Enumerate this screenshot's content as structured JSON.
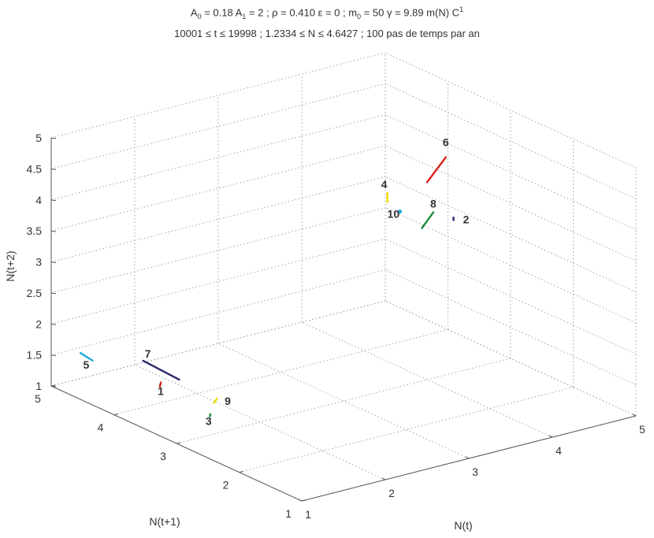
{
  "title_line1": {
    "p1": "A",
    "s1": "0",
    "p2": " = 0.18 A",
    "s2": "1",
    "p3": " = 2 ; ρ = 0.410 ε = 0 ; m",
    "s3": "0",
    "p4": " = 50 γ = 9.89 m(N) C",
    "sup": "1"
  },
  "title_line2": "10001 ≤ t ≤ 19998 ; 1.2334 ≤ N ≤ 4.6427 ; 100 pas de temps par an",
  "chart_data": {
    "type": "scatter3d",
    "title": "A0 = 0.18 A1 = 2 ; ρ = 0.410 ε = 0 ; m0 = 50 γ = 9.89 m(N) C1",
    "subtitle": "10001 ≤ t ≤ 19998 ; 1.2334 ≤ N ≤ 4.6427 ; 100 pas de temps par an",
    "xlabel": "N(t)",
    "ylabel": "N(t+1)",
    "zlabel": "N(t+2)",
    "xlim": [
      1,
      5
    ],
    "ylim": [
      1,
      5
    ],
    "zlim": [
      1,
      5
    ],
    "x_ticks": [
      "1",
      "2",
      "3",
      "4",
      "5"
    ],
    "y_ticks": [
      "1",
      "2",
      "3",
      "4",
      "5"
    ],
    "z_ticks": [
      "1",
      "1.5",
      "2",
      "2.5",
      "3",
      "3.5",
      "4",
      "4.5",
      "5"
    ],
    "grid": true,
    "segments": [
      {
        "name": "1",
        "color": "#cc2222",
        "x": [
          1.25,
          1.3
        ],
        "y": [
          3.6,
          3.65
        ],
        "z": [
          1.55,
          1.58
        ]
      },
      {
        "name": "2",
        "color": "#22226a",
        "x": [
          4.28,
          4.3
        ],
        "y": [
          2.95,
          2.98
        ],
        "z": [
          3.5,
          3.52
        ]
      },
      {
        "name": "3",
        "color": "#1a8a3a",
        "x": [
          1.4,
          1.42
        ],
        "y": [
          3.0,
          3.02
        ],
        "z": [
          1.3,
          1.32
        ]
      },
      {
        "name": "4",
        "color": "#eedd00",
        "x": [
          3.6,
          3.6
        ],
        "y": [
          3.1,
          3.1
        ],
        "z": [
          3.95,
          4.1
        ]
      },
      {
        "name": "5",
        "color": "#1ea8dc",
        "x": [
          1.05,
          1.12
        ],
        "y": [
          4.6,
          4.5
        ],
        "z": [
          1.7,
          1.6
        ]
      },
      {
        "name": "6",
        "color": "#dd2222",
        "x": [
          4.6,
          4.45
        ],
        "y": [
          3.5,
          3.6
        ],
        "z": [
          4.15,
          3.75
        ]
      },
      {
        "name": "7",
        "color": "#2a2a6a",
        "x": [
          1.35,
          1.52
        ],
        "y": [
          4.0,
          3.65
        ],
        "z": [
          1.75,
          1.55
        ]
      },
      {
        "name": "8",
        "color": "#1a8a3a",
        "x": [
          3.9,
          4.15
        ],
        "y": [
          2.95,
          3.1
        ],
        "z": [
          3.5,
          3.6
        ]
      },
      {
        "name": "9",
        "color": "#eedd00",
        "x": [
          1.45,
          1.52
        ],
        "y": [
          3.0,
          3.05
        ],
        "z": [
          1.5,
          1.52
        ]
      },
      {
        "name": "10",
        "color": "#1ea8dc",
        "x": [
          3.75,
          3.75
        ],
        "y": [
          3.1,
          3.1
        ],
        "z": [
          3.75,
          3.75
        ]
      }
    ]
  }
}
